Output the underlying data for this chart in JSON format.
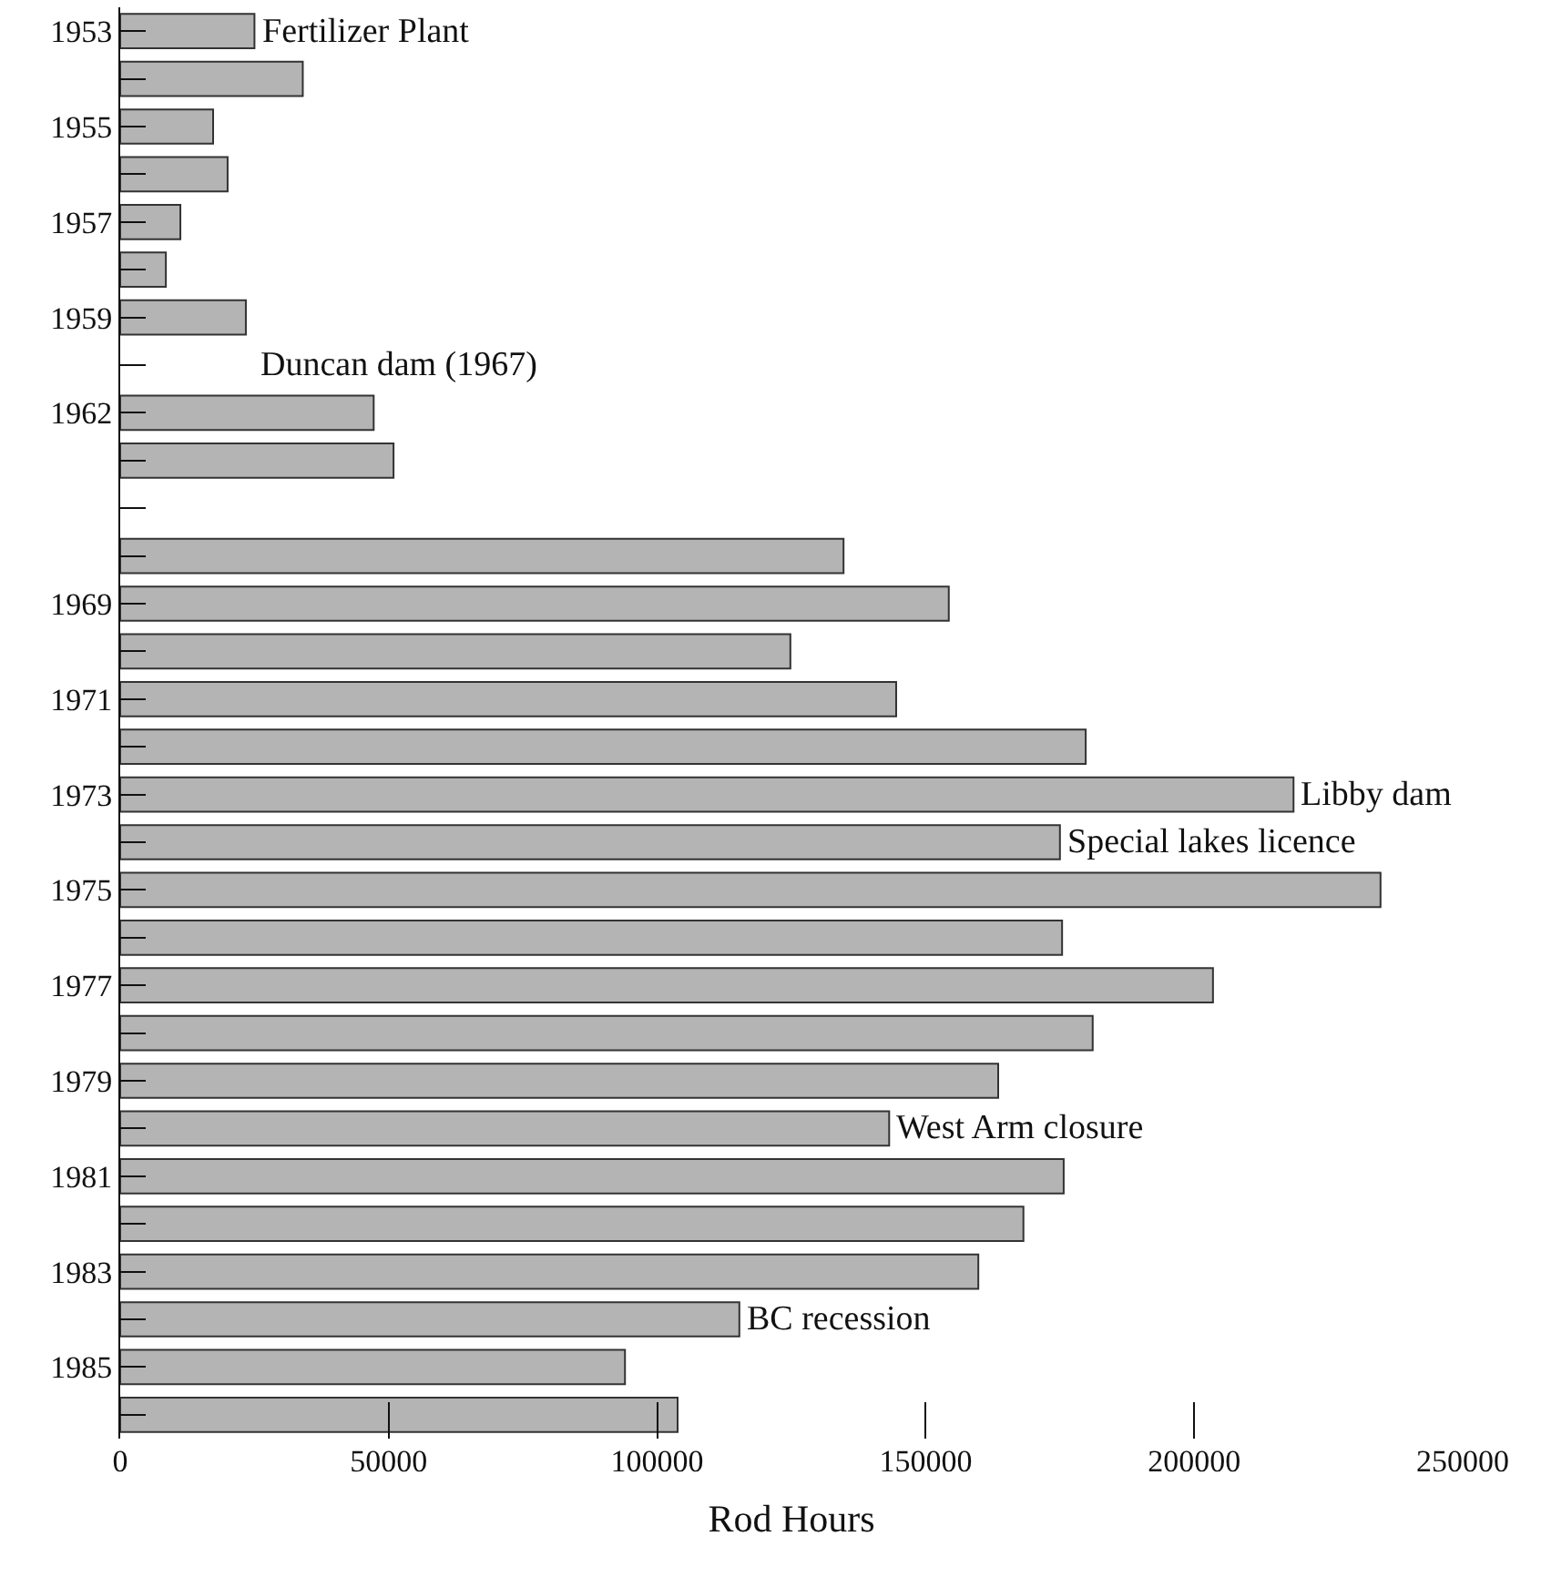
{
  "chart_data": {
    "type": "bar",
    "orientation": "horizontal",
    "xlabel": "Rod Hours",
    "categories": [
      "1953",
      null,
      "1955",
      null,
      "1957",
      null,
      "1959",
      null,
      "1962",
      null,
      null,
      null,
      "1969",
      null,
      "1971",
      null,
      "1973",
      null,
      "1975",
      null,
      "1977",
      null,
      "1979",
      null,
      "1981",
      null,
      "1983",
      null,
      "1985",
      null
    ],
    "values": [
      25000,
      34000,
      17300,
      20000,
      11200,
      8500,
      23400,
      null,
      47200,
      50900,
      null,
      134700,
      154300,
      124800,
      144500,
      179800,
      218500,
      175000,
      234700,
      175400,
      203500,
      181100,
      163500,
      143200,
      175700,
      168200,
      159800,
      115300,
      94000,
      103800
    ],
    "color": "#b4b4b4",
    "xlim": [
      0,
      250000
    ],
    "xticks": [
      0,
      50000,
      100000,
      150000,
      200000,
      250000
    ],
    "annotations": [
      {
        "text": "Fertilizer Plant",
        "x": 25000,
        "y": "1953"
      },
      "Duncan dam (1967)",
      {
        "text": "Libby dam",
        "x": 218500,
        "y": "1973"
      },
      {
        "text": "Special lakes licence",
        "x": 175000
      },
      {
        "text": "West Arm closure",
        "x": 143200
      },
      {
        "text": "BC recession",
        "x": 115300
      }
    ]
  }
}
